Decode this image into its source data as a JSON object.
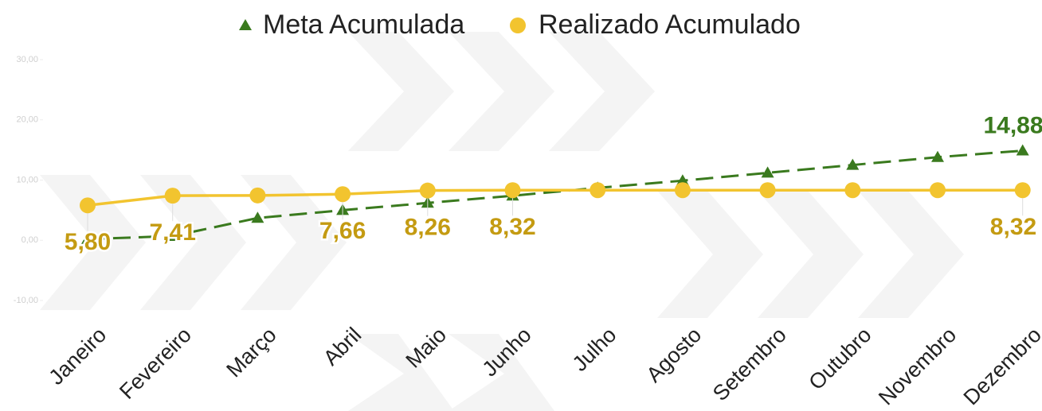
{
  "chart_data": {
    "type": "line",
    "categories": [
      "Janeiro",
      "Fevereiro",
      "Março",
      "Abril",
      "Maio",
      "Junho",
      "Julho",
      "Agosto",
      "Setembro",
      "Outubro",
      "Novembro",
      "Dezembro"
    ],
    "series": [
      {
        "name": "Meta Acumulada",
        "color": "#3a7a1e",
        "marker": "triangle",
        "dashed": true,
        "values": [
          0.2,
          0.7,
          3.7,
          5.0,
          6.2,
          7.4,
          8.7,
          9.9,
          11.2,
          12.5,
          13.8,
          14.88
        ],
        "value_labels": [
          null,
          null,
          null,
          null,
          null,
          null,
          null,
          null,
          null,
          null,
          null,
          "14,88"
        ]
      },
      {
        "name": "Realizado Acumulado",
        "color": "#f2c42f",
        "marker": "circle",
        "dashed": false,
        "values": [
          5.8,
          7.41,
          7.45,
          7.66,
          8.26,
          8.32,
          8.32,
          8.32,
          8.32,
          8.32,
          8.32,
          8.32
        ],
        "value_labels": [
          "5,80",
          "7,41",
          null,
          "7,66",
          "8,26",
          "8,32",
          null,
          null,
          null,
          null,
          null,
          "8,32"
        ]
      }
    ],
    "ylim": [
      -10,
      30
    ],
    "yticks": [
      {
        "value": -10,
        "label": "-10,00"
      },
      {
        "value": 0,
        "label": "0,00"
      },
      {
        "value": 10,
        "label": "10,00"
      },
      {
        "value": 20,
        "label": "20,00"
      },
      {
        "value": 30,
        "label": "30,00"
      }
    ],
    "legend": "top"
  }
}
